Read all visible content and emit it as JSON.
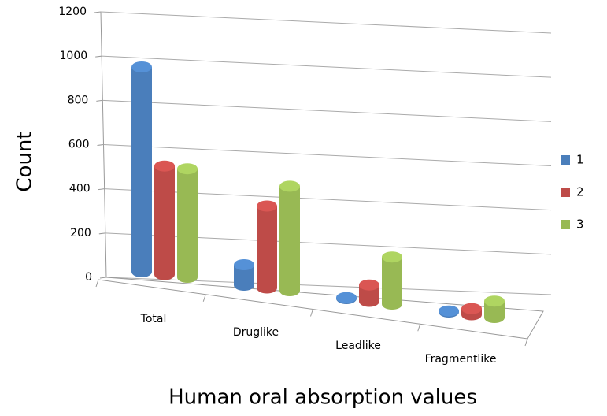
{
  "chart_data": {
    "type": "bar3d",
    "categories": [
      "Total",
      "Druglike",
      "Leadlike",
      "Fragmentlike"
    ],
    "series": [
      {
        "name": "1",
        "color": "#4a7ebb",
        "values": [
          1000,
          100,
          5,
          5
        ]
      },
      {
        "name": "2",
        "color": "#be4b48",
        "values": [
          530,
          400,
          80,
          30
        ]
      },
      {
        "name": "3",
        "color": "#98b954",
        "values": [
          530,
          510,
          230,
          80
        ]
      }
    ],
    "ylim": [
      0,
      1200
    ],
    "yticks": [
      0,
      200,
      400,
      600,
      800,
      1000,
      1200
    ],
    "ylabel": "Count",
    "xlabel": "Human oral absorption values",
    "grid": true,
    "legend": "right"
  }
}
